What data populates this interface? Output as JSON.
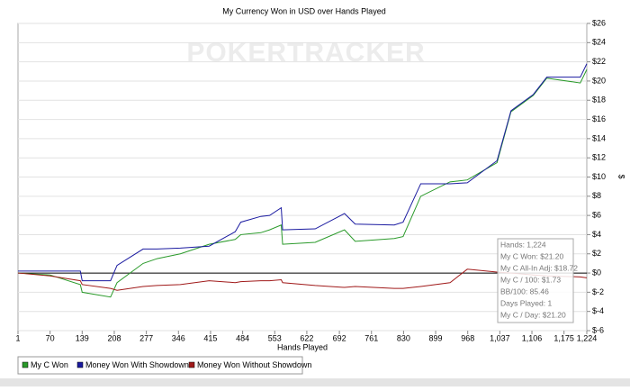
{
  "chart_data": {
    "type": "line",
    "title": "My Currency Won in USD over Hands Played",
    "watermark": "POKERTRACKER",
    "x_label": "Hands Played",
    "y_label": "$",
    "x": [
      1,
      70,
      135,
      139,
      200,
      214,
      270,
      300,
      350,
      412,
      468,
      480,
      523,
      542,
      567,
      570,
      640,
      703,
      726,
      810,
      829,
      867,
      930,
      967,
      1031,
      1061,
      1109,
      1138,
      1210,
      1224
    ],
    "series": [
      {
        "name": "My C Won",
        "color": "#2a9a2a",
        "values": [
          0,
          -0.2,
          -1.2,
          -2.0,
          -2.5,
          -1.0,
          1.0,
          1.5,
          2.0,
          3.0,
          3.5,
          4.0,
          4.2,
          4.5,
          5.0,
          3.0,
          3.2,
          4.5,
          3.3,
          3.6,
          3.8,
          8.0,
          9.5,
          9.7,
          11.5,
          16.8,
          18.5,
          20.3,
          19.8,
          21.2
        ]
      },
      {
        "name": "Money Won With Showdown",
        "color": "#1a1aa0",
        "values": [
          0.2,
          0.2,
          0.2,
          -0.8,
          -0.8,
          0.8,
          2.5,
          2.5,
          2.6,
          2.8,
          4.3,
          5.3,
          5.9,
          6.0,
          6.8,
          4.5,
          4.6,
          6.2,
          5.1,
          5.0,
          5.3,
          9.3,
          9.3,
          9.4,
          11.7,
          16.9,
          18.6,
          20.4,
          20.4,
          21.8
        ]
      },
      {
        "name": "Money Won Without Showdown",
        "color": "#a01a1a",
        "values": [
          0,
          -0.3,
          -0.8,
          -1.2,
          -1.6,
          -1.8,
          -1.4,
          -1.3,
          -1.2,
          -0.8,
          -1.0,
          -0.9,
          -0.8,
          -0.8,
          -0.7,
          -1.0,
          -1.3,
          -1.5,
          -1.4,
          -1.6,
          -1.6,
          -1.4,
          -1.0,
          0.4,
          0.1,
          0.0,
          -0.2,
          -0.3,
          -0.4,
          -0.5
        ]
      }
    ],
    "xlim": [
      1,
      1224
    ],
    "xticks": [
      1,
      70,
      139,
      208,
      277,
      346,
      415,
      484,
      553,
      622,
      692,
      761,
      830,
      899,
      968,
      {
        "value": 1037,
        "label": "1,037"
      },
      {
        "value": 1106,
        "label": "1,106"
      },
      {
        "value": 1175,
        "label": "1,175"
      },
      {
        "value": 1224,
        "label": "1,224"
      }
    ],
    "ylim": [
      -6,
      26
    ],
    "yticks": [
      {
        "value": -6,
        "label": "$-6"
      },
      {
        "value": -4,
        "label": "$-4"
      },
      {
        "value": -2,
        "label": "$-2"
      },
      {
        "value": 0,
        "label": "$0"
      },
      {
        "value": 2,
        "label": "$2"
      },
      {
        "value": 4,
        "label": "$4"
      },
      {
        "value": 6,
        "label": "$6"
      },
      {
        "value": 8,
        "label": "$8"
      },
      {
        "value": 10,
        "label": "$10"
      },
      {
        "value": 12,
        "label": "$12"
      },
      {
        "value": 14,
        "label": "$14"
      },
      {
        "value": 16,
        "label": "$16"
      },
      {
        "value": 18,
        "label": "$18"
      },
      {
        "value": 20,
        "label": "$20"
      },
      {
        "value": 22,
        "label": "$22"
      },
      {
        "value": 24,
        "label": "$24"
      },
      {
        "value": 26,
        "label": "$26"
      }
    ],
    "grid": true,
    "tooltip": [
      "Hands: 1,224",
      "My C Won: $21.20",
      "My C All-In Adj: $18.72",
      "My C / 100: $1.73",
      "BB/100: 85.46",
      "Days Played: 1",
      "My C / Day: $21.20"
    ]
  }
}
